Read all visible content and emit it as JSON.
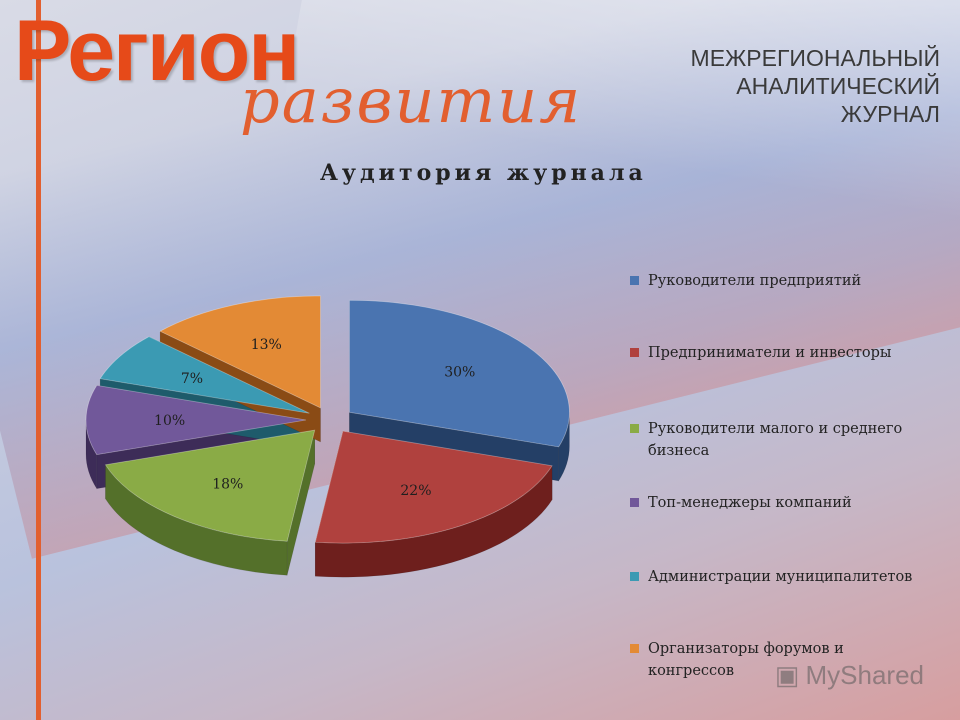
{
  "logo": {
    "main": "Регион",
    "script": "развития"
  },
  "journal_lines": [
    "МЕЖРЕГИОНАЛЬНЫЙ",
    "АНАЛИТИЧЕСКИЙ",
    "ЖУРНАЛ"
  ],
  "watermark": {
    "text": "MyShared"
  },
  "chart_data": {
    "type": "pie",
    "title": "Аудитория журнала",
    "legend_position": "right",
    "slices": [
      {
        "label": "Руководители предприятий",
        "value": 30,
        "value_label": "30%",
        "color": "#4a74b0",
        "dark": "#243f66"
      },
      {
        "label": "Предприниматели и инвесторы",
        "value": 22,
        "value_label": "22%",
        "color": "#b0413e",
        "dark": "#6e1f1d"
      },
      {
        "label": "Руководители малого и среднего бизнеса",
        "value": 18,
        "value_label": "18%",
        "color": "#8aab46",
        "dark": "#54702a"
      },
      {
        "label": "Топ-менеджеры компаний",
        "value": 10,
        "value_label": "10%",
        "color": "#71589a",
        "dark": "#3d2c58"
      },
      {
        "label": "Администрации муниципалитетов",
        "value": 7,
        "value_label": "7%",
        "color": "#3b9ab3",
        "dark": "#1e5b6b"
      },
      {
        "label": "Организаторы форумов и конгрессов",
        "value": 13,
        "value_label": "13%",
        "color": "#e38a35",
        "dark": "#8a4b15"
      }
    ]
  }
}
